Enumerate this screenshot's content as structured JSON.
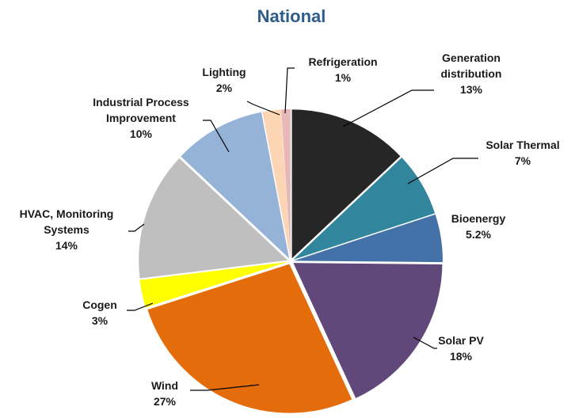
{
  "chart_data": {
    "type": "pie",
    "title": "National",
    "legend": "none",
    "slices": [
      {
        "name": "Generation distribution",
        "label_lines": [
          "Generation",
          "distribution"
        ],
        "percent_label": "13%",
        "value": 13,
        "color": "#262626"
      },
      {
        "name": "Solar Thermal",
        "label_lines": [
          "Solar Thermal"
        ],
        "percent_label": "7%",
        "value": 7,
        "color": "#31859c"
      },
      {
        "name": "Bioenergy",
        "label_lines": [
          "Bioenergy"
        ],
        "percent_label": "5.2%",
        "value": 5.2,
        "color": "#4472a8"
      },
      {
        "name": "Solar PV",
        "label_lines": [
          "Solar PV"
        ],
        "percent_label": "18%",
        "value": 18,
        "color": "#60497a"
      },
      {
        "name": "Wind",
        "label_lines": [
          "Wind"
        ],
        "percent_label": "27%",
        "value": 27,
        "color": "#e46c0a"
      },
      {
        "name": "Cogen",
        "label_lines": [
          "Cogen"
        ],
        "percent_label": "3%",
        "value": 3,
        "color": "#ffff00"
      },
      {
        "name": "HVAC, Monitoring Systems",
        "label_lines": [
          "HVAC, Monitoring",
          "Systems"
        ],
        "percent_label": "14%",
        "value": 14,
        "color": "#bfbfbf"
      },
      {
        "name": "Industrial Process Improvement",
        "label_lines": [
          "Industrial Process",
          "Improvement"
        ],
        "percent_label": "10%",
        "value": 10,
        "color": "#95b3d7"
      },
      {
        "name": "Lighting",
        "label_lines": [
          "Lighting"
        ],
        "percent_label": "2%",
        "value": 2,
        "color": "#fcd5b5"
      },
      {
        "name": "Refrigeration",
        "label_lines": [
          "Refrigeration"
        ],
        "percent_label": "1%",
        "value": 1,
        "color": "#e6b9b8"
      }
    ]
  }
}
